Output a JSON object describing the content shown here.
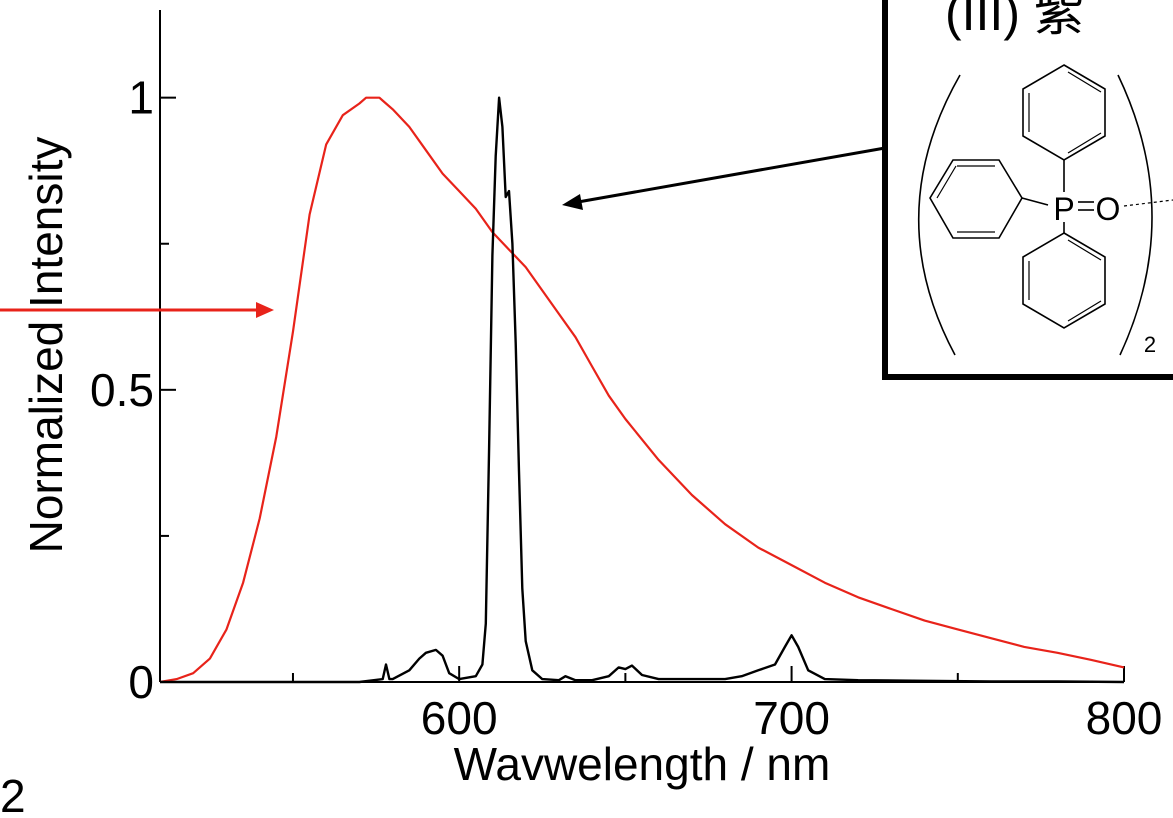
{
  "chart_data": {
    "type": "line",
    "xlabel": "Wavwelength / nm",
    "ylabel": "Normalized Intensity",
    "xlim": [
      510,
      800
    ],
    "ylim": [
      0,
      1.15
    ],
    "x_ticks": [
      600,
      700,
      800
    ],
    "x_tick_labels": [
      "600",
      "700",
      "800"
    ],
    "x_minor_ticks": [
      550,
      650,
      750
    ],
    "y_ticks": [
      0,
      0.5,
      1
    ],
    "y_tick_labels": [
      "0",
      "0.5",
      "1"
    ],
    "y_minor_ticks": [
      0.25,
      0.75
    ],
    "grid": false,
    "series": [
      {
        "color": "#e8231a",
        "x": [
          510,
          515,
          520,
          525,
          530,
          535,
          540,
          545,
          550,
          555,
          560,
          565,
          570,
          572,
          574,
          576,
          578,
          580,
          585,
          590,
          595,
          600,
          605,
          610,
          615,
          620,
          625,
          630,
          635,
          640,
          645,
          650,
          660,
          670,
          680,
          690,
          700,
          710,
          720,
          730,
          740,
          750,
          760,
          770,
          780,
          790,
          800
        ],
        "y": [
          0.0,
          0.005,
          0.015,
          0.04,
          0.09,
          0.17,
          0.28,
          0.42,
          0.6,
          0.8,
          0.92,
          0.97,
          0.99,
          1.0,
          1.0,
          1.0,
          0.99,
          0.98,
          0.95,
          0.91,
          0.87,
          0.84,
          0.81,
          0.77,
          0.74,
          0.71,
          0.67,
          0.63,
          0.59,
          0.54,
          0.49,
          0.45,
          0.38,
          0.32,
          0.27,
          0.23,
          0.2,
          0.17,
          0.145,
          0.125,
          0.105,
          0.09,
          0.075,
          0.06,
          0.05,
          0.038,
          0.025
        ]
      },
      {
        "color": "#000000",
        "x": [
          510,
          540,
          570,
          577,
          578,
          579,
          580,
          585,
          588,
          590,
          593,
          595,
          597,
          600,
          605,
          607,
          608,
          609,
          610,
          611,
          612,
          613,
          614,
          615,
          616,
          617,
          618,
          619,
          620,
          622,
          625,
          630,
          632,
          635,
          640,
          645,
          648,
          650,
          652,
          655,
          660,
          670,
          680,
          685,
          690,
          695,
          698,
          700,
          702,
          705,
          710,
          720,
          740,
          760,
          780,
          800
        ],
        "y": [
          0.0,
          0.0,
          0.0,
          0.005,
          0.03,
          0.005,
          0.005,
          0.02,
          0.04,
          0.05,
          0.055,
          0.045,
          0.015,
          0.005,
          0.01,
          0.03,
          0.1,
          0.4,
          0.73,
          0.9,
          1.0,
          0.95,
          0.83,
          0.84,
          0.75,
          0.58,
          0.36,
          0.16,
          0.07,
          0.02,
          0.005,
          0.003,
          0.01,
          0.003,
          0.003,
          0.01,
          0.025,
          0.022,
          0.028,
          0.012,
          0.005,
          0.005,
          0.005,
          0.01,
          0.02,
          0.03,
          0.06,
          0.08,
          0.06,
          0.02,
          0.005,
          0.003,
          0.002,
          0.001,
          0.001,
          0.0
        ]
      }
    ]
  },
  "inset": {
    "partial_title": "(III) 紫",
    "atom_p": "P",
    "atom_o": "O",
    "subscript": "2"
  },
  "page_edge_label": "2",
  "colors": {
    "red_curve": "#e8231a",
    "black_curve": "#000000",
    "axis": "#000000"
  }
}
